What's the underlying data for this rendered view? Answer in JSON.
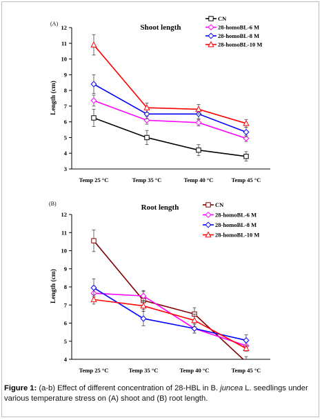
{
  "chart_data": [
    {
      "type": "line",
      "panel_label": "(A)",
      "title": "Shoot length",
      "ylabel": "Length (cm)",
      "xlabel": "",
      "categories": [
        "Temp 25 °C",
        "Temp 35 °C",
        "Temp 40 °C",
        "Temp 45 °C"
      ],
      "ylim": [
        3,
        12
      ],
      "yticks": [
        3,
        4,
        5,
        6,
        7,
        8,
        9,
        10,
        11,
        12
      ],
      "legend_position": "top-right",
      "grid": false,
      "series": [
        {
          "name": "CN",
          "color": "#000000",
          "marker": "square",
          "values": [
            6.25,
            5.0,
            4.2,
            3.8
          ],
          "errors": [
            0.55,
            0.45,
            0.35,
            0.3
          ]
        },
        {
          "name": "28-homoBL-6 M",
          "color": "#ff00ff",
          "marker": "diamond",
          "values": [
            7.35,
            6.1,
            5.95,
            4.95
          ],
          "errors": [
            0.35,
            0.25,
            0.2,
            0.2
          ]
        },
        {
          "name": "28-homoBL-8 M",
          "color": "#0000ff",
          "marker": "diamond",
          "values": [
            8.4,
            6.5,
            6.5,
            5.35
          ],
          "errors": [
            0.6,
            0.3,
            0.3,
            0.3
          ]
        },
        {
          "name": "28-homoBL-10 M",
          "color": "#ff0000",
          "marker": "triangle",
          "values": [
            10.9,
            6.9,
            6.8,
            5.9
          ],
          "errors": [
            0.65,
            0.3,
            0.3,
            0.25
          ]
        }
      ]
    },
    {
      "type": "line",
      "panel_label": "(B)",
      "title": "Root length",
      "ylabel": "Length (cm)",
      "xlabel": "",
      "categories": [
        "Temp 25 °C",
        "Temp 35 °C",
        "Temp 40 °C",
        "Temp 45 °C"
      ],
      "ylim": [
        4,
        12
      ],
      "yticks": [
        4,
        5,
        6,
        7,
        8,
        9,
        10,
        11,
        12
      ],
      "legend_position": "top-right",
      "grid": false,
      "series": [
        {
          "name": "CN",
          "color": "#800000",
          "marker": "square",
          "values": [
            10.55,
            7.25,
            6.5,
            3.85
          ],
          "errors": [
            0.6,
            0.5,
            0.35,
            0.3
          ]
        },
        {
          "name": "28-homoBL-6 M",
          "color": "#ff00ff",
          "marker": "diamond",
          "values": [
            7.65,
            7.5,
            5.7,
            4.75
          ],
          "errors": [
            0.4,
            0.3,
            0.25,
            0.2
          ]
        },
        {
          "name": "28-homoBL-8 M",
          "color": "#0000ff",
          "marker": "diamond",
          "values": [
            7.95,
            6.25,
            5.7,
            5.05
          ],
          "errors": [
            0.5,
            0.4,
            0.25,
            0.3
          ]
        },
        {
          "name": "28-homoBL-10 M",
          "color": "#ff0000",
          "marker": "triangle",
          "values": [
            7.3,
            6.95,
            6.15,
            4.6
          ],
          "errors": [
            0.25,
            0.3,
            0.35,
            0.15
          ]
        }
      ]
    }
  ],
  "caption": {
    "label": "Figure 1:",
    "text_1": " (a-b) Effect of different concentration of 28-HBL in B. ",
    "species": "juncea",
    "text_2": " L. seedlings under various temperature stress on (A) shoot and (B) root length."
  }
}
